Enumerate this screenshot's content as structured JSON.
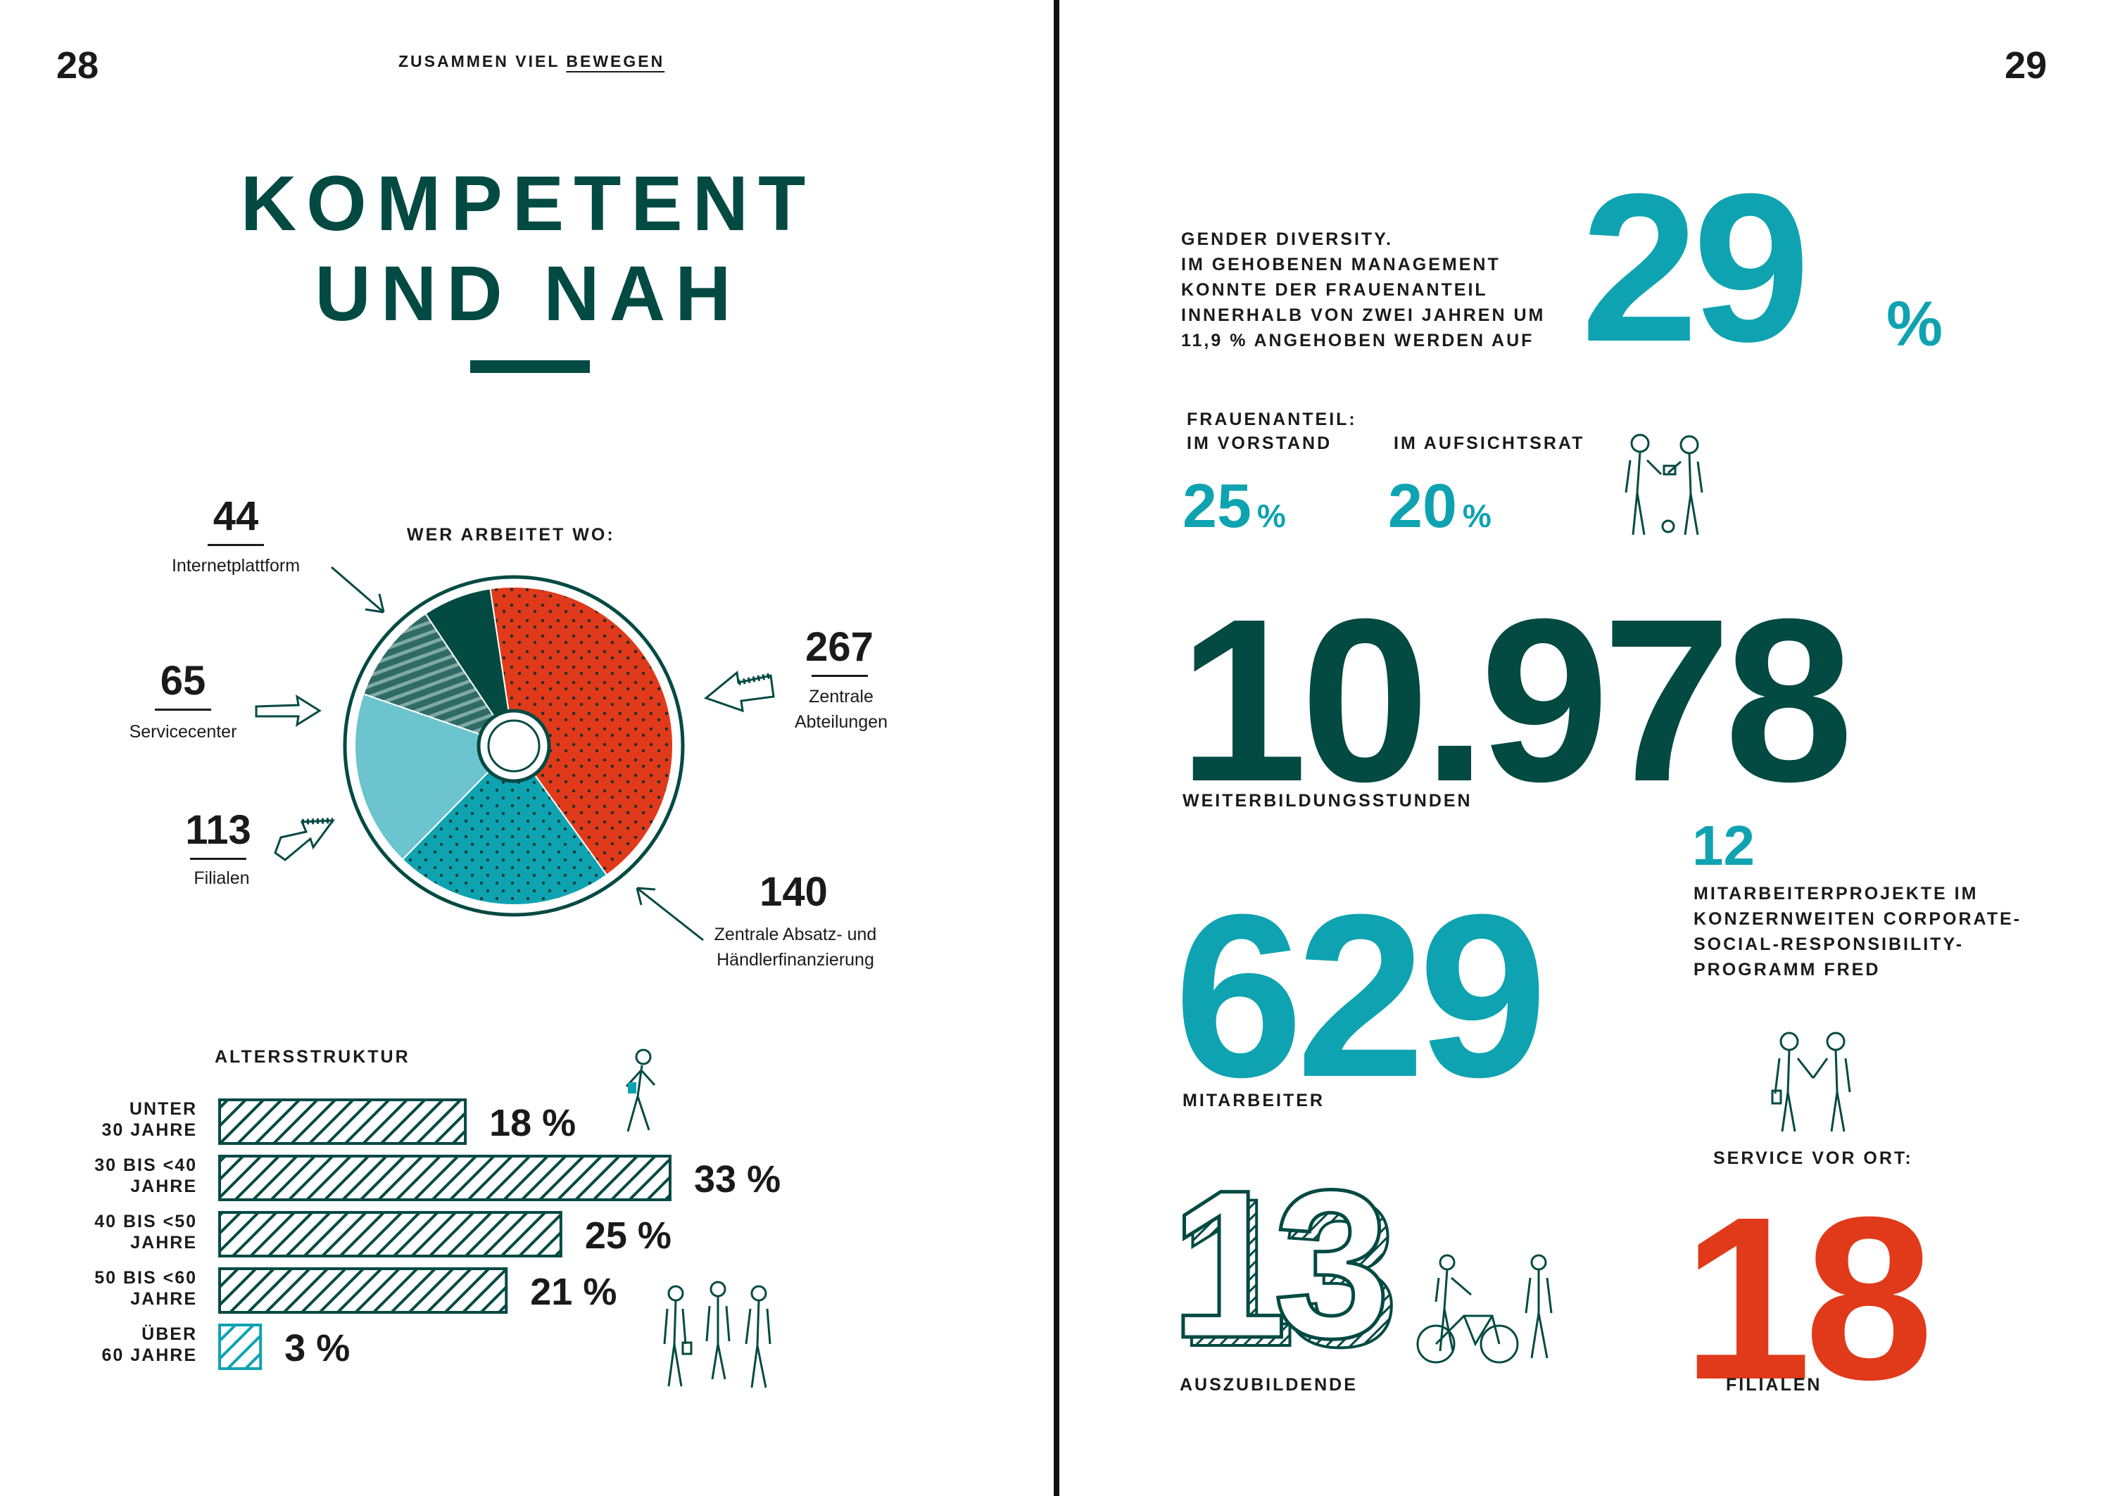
{
  "left": {
    "page_number": "28",
    "header_prefix": "ZUSAMMEN VIEL ",
    "header_underlined": "BEWEGEN",
    "title_line1": "KOMPETENT",
    "title_line2": "UND NAH",
    "pie_title": "WER ARBEITET WO:",
    "pie_labels": [
      {
        "value": "44",
        "name": "Internetplattform"
      },
      {
        "value": "65",
        "name": "Servicecenter"
      },
      {
        "value": "113",
        "name": "Filialen"
      },
      {
        "value": "267",
        "name_line1": "Zentrale",
        "name_line2": "Abteilungen"
      },
      {
        "value": "140",
        "name_line1": "Zentrale Absatz- und",
        "name_line2": "Händlerfinanzierung"
      }
    ],
    "age_title": "ALTERSSTRUKTUR",
    "age_rows": [
      {
        "l1": "UNTER",
        "l2": "30 JAHRE",
        "pct": "18 %"
      },
      {
        "l1": "30 BIS <40",
        "l2": "JAHRE",
        "pct": "33 %"
      },
      {
        "l1": "40 BIS <50",
        "l2": "JAHRE",
        "pct": "25 %"
      },
      {
        "l1": "50 BIS <60",
        "l2": "JAHRE",
        "pct": "21 %"
      },
      {
        "l1": "ÜBER",
        "l2": "60 JAHRE",
        "pct": "3 %"
      }
    ]
  },
  "right": {
    "page_number": "29",
    "gender_text": [
      "GENDER DIVERSITY.",
      "IM GEHOBENEN MANAGEMENT",
      "KONNTE DER FRAUENANTEIL",
      "INNERHALB VON ZWEI JAHREN UM",
      "11,9 % ANGEHOBEN WERDEN AUF"
    ],
    "gender_value": "29",
    "gender_unit": "%",
    "frauen_title": "FRAUENANTEIL:",
    "vorstand_label": "IM VORSTAND",
    "vorstand_value": "25",
    "vorstand_unit": "%",
    "aufsicht_label": "IM AUFSICHTSRAT",
    "aufsicht_value": "20",
    "aufsicht_unit": "%",
    "training_value": "10.978",
    "training_label": "WEITERBILDUNGSSTUNDEN",
    "projects_value": "12",
    "projects_text": [
      "MITARBEITERPROJEKTE IM",
      "KONZERNWEITEN CORPORATE-",
      "SOCIAL-RESPONSIBILITY-",
      "PROGRAMM FRED"
    ],
    "staff_value": "629",
    "staff_label": "MITARBEITER",
    "service_title": "SERVICE VOR ORT:",
    "branches_value": "18",
    "branches_label": "FILIALEN",
    "apprentices_value": "13",
    "apprentices_label": "AUSZUBILDENDE"
  },
  "chart_data": [
    {
      "type": "pie",
      "title": "WER ARBEITET WO:",
      "categories": [
        "Zentrale Abteilungen",
        "Zentrale Absatz- und Händlerfinanzierung",
        "Filialen",
        "Servicecenter",
        "Internetplattform"
      ],
      "values": [
        267,
        140,
        113,
        65,
        44
      ],
      "colors": [
        "#e03a1a",
        "#0fa3b1",
        "#6cc4cf",
        "#2f6b65",
        "#034a43"
      ]
    },
    {
      "type": "bar",
      "title": "ALTERSSTRUKTUR",
      "categories": [
        "UNTER 30 JAHRE",
        "30 BIS <40 JAHRE",
        "40 BIS <50 JAHRE",
        "50 BIS <60 JAHRE",
        "ÜBER 60 JAHRE"
      ],
      "values": [
        18,
        33,
        25,
        21,
        3
      ],
      "xlim": [
        0,
        33
      ]
    }
  ]
}
